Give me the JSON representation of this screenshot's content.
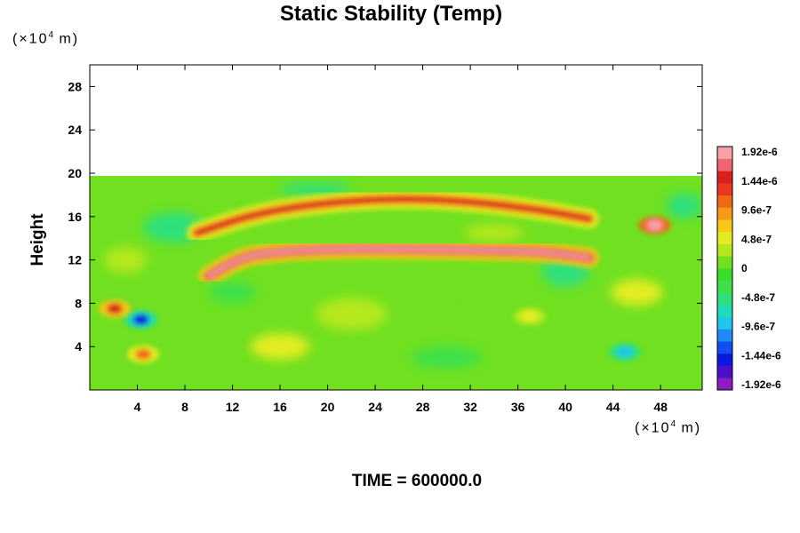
{
  "chart_data": {
    "type": "heatmap",
    "title": "Static Stability (Temp)",
    "ylabel": "Height",
    "xlabel": "",
    "x_unit": {
      "prefix": "(×10",
      "exp": "4",
      "suffix": " m)"
    },
    "y_unit": {
      "prefix": "(×10",
      "exp": "4",
      "suffix": " m)"
    },
    "xlim": [
      0,
      51.5
    ],
    "ylim": [
      0,
      30
    ],
    "x_ticks": [
      4,
      8,
      12,
      16,
      20,
      24,
      28,
      32,
      36,
      40,
      44,
      48
    ],
    "y_ticks": [
      4,
      8,
      12,
      16,
      20,
      24,
      28
    ],
    "field_top": 20,
    "colorbar": {
      "min": -1.92e-06,
      "max": 1.92e-06,
      "labels": [
        "1.92e-6",
        "1.44e-6",
        "9.6e-7",
        "4.8e-7",
        "0",
        "-4.8e-7",
        "-9.6e-7",
        "-1.44e-6",
        "-1.92e-6"
      ],
      "colors": [
        "#8a1cc0",
        "#4b10c8",
        "#0a18e0",
        "#0f4ef0",
        "#1f8af5",
        "#22c4e8",
        "#1edcb8",
        "#2fe07a",
        "#3ee04a",
        "#39dd2a",
        "#70e020",
        "#b4e81e",
        "#e4ec20",
        "#f8c818",
        "#f89a16",
        "#f06818",
        "#e83820",
        "#d8201c",
        "#f06470",
        "#f8a0a8"
      ]
    },
    "features": [
      {
        "name": "upper stable band",
        "type": "band",
        "x": [
          9,
          14,
          20,
          26,
          32,
          38,
          42
        ],
        "y": [
          14.5,
          16.3,
          17.3,
          17.7,
          17.4,
          16.6,
          15.8
        ],
        "value": 1.44e-06
      },
      {
        "name": "main stable layer",
        "type": "band",
        "x": [
          10,
          12,
          14,
          20,
          26,
          32,
          38,
          42
        ],
        "y": [
          10.5,
          11.8,
          12.6,
          13.0,
          13.0,
          12.9,
          12.8,
          12.2
        ],
        "value": 1.92e-06
      },
      {
        "name": "unstable patch",
        "type": "blob",
        "x": 4.3,
        "y": 6.5,
        "value": -1.44e-06
      },
      {
        "name": "stable patch",
        "type": "blob",
        "x": 4.5,
        "y": 3.3,
        "value": 9.6e-07
      },
      {
        "name": "stable patch",
        "type": "blob",
        "x": 2.1,
        "y": 7.5,
        "value": 1.44e-06
      },
      {
        "name": "stable patch",
        "type": "blob",
        "x": 47.5,
        "y": 15.2,
        "value": 1.92e-06
      },
      {
        "name": "warm dome",
        "type": "blob",
        "x": 37,
        "y": 6.8,
        "value": 4.8e-07
      },
      {
        "name": "cool filament",
        "type": "blob",
        "x": 45,
        "y": 3.5,
        "value": -9.6e-07
      }
    ]
  },
  "time_label": "TIME = 600000.0"
}
